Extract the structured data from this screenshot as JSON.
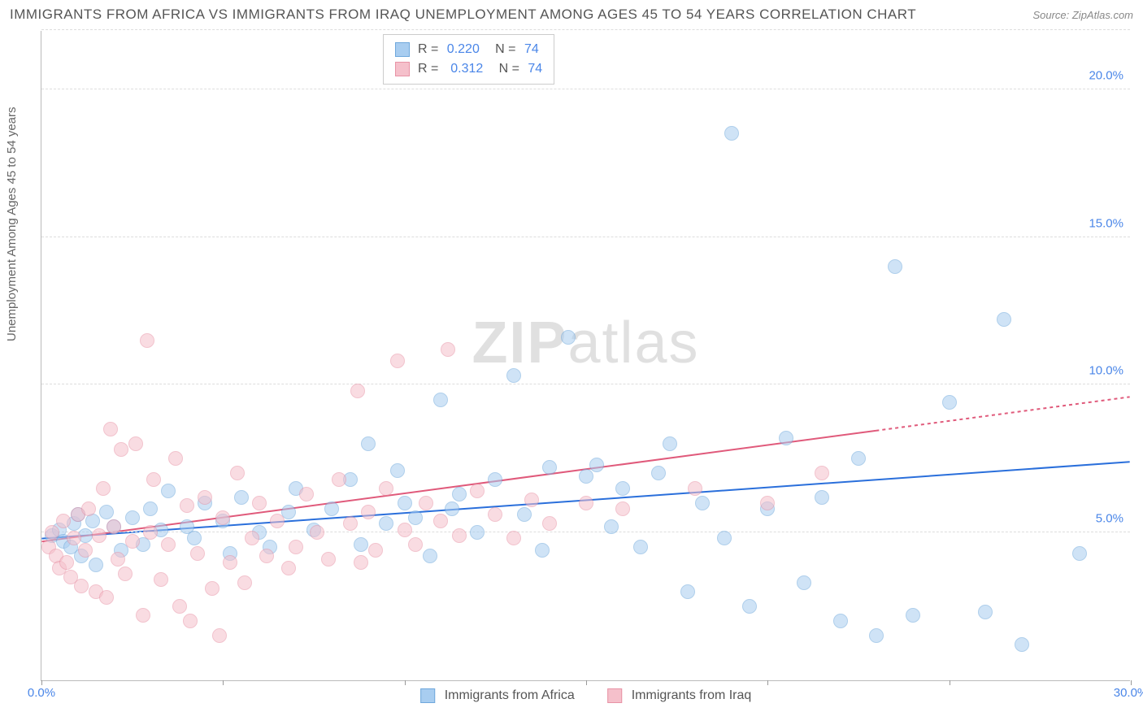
{
  "title": "IMMIGRANTS FROM AFRICA VS IMMIGRANTS FROM IRAQ UNEMPLOYMENT AMONG AGES 45 TO 54 YEARS CORRELATION CHART",
  "source": "Source: ZipAtlas.com",
  "y_axis_label": "Unemployment Among Ages 45 to 54 years",
  "watermark_a": "ZIP",
  "watermark_b": "atlas",
  "chart": {
    "type": "scatter",
    "xlim": [
      0,
      30
    ],
    "ylim": [
      0,
      22
    ],
    "x_ticks": [
      0,
      5,
      10,
      15,
      20,
      25,
      30
    ],
    "x_tick_labels": {
      "0": "0.0%",
      "30": "30.0%"
    },
    "y_ticks": [
      5,
      10,
      15,
      20
    ],
    "y_tick_labels": {
      "5": "5.0%",
      "10": "10.0%",
      "15": "15.0%",
      "20": "20.0%"
    },
    "background_color": "#ffffff",
    "grid_color": "#dddddd",
    "axis_color": "#bbbbbb",
    "tick_label_color": "#4a86e8",
    "point_radius": 9,
    "point_opacity": 0.55,
    "series": [
      {
        "name": "Immigrants from Africa",
        "fill": "#a8cdf0",
        "stroke": "#6fa8dc",
        "r": "0.220",
        "n": "74",
        "trend": {
          "x1": 0,
          "y1": 4.8,
          "x2": 30,
          "y2": 7.4,
          "color": "#2a6fdb",
          "width": 2
        },
        "points": [
          [
            0.3,
            4.9
          ],
          [
            0.5,
            5.1
          ],
          [
            0.6,
            4.7
          ],
          [
            0.8,
            4.5
          ],
          [
            0.9,
            5.3
          ],
          [
            1.0,
            5.6
          ],
          [
            1.1,
            4.2
          ],
          [
            1.2,
            4.9
          ],
          [
            1.4,
            5.4
          ],
          [
            1.5,
            3.9
          ],
          [
            1.8,
            5.7
          ],
          [
            2.0,
            5.2
          ],
          [
            2.2,
            4.4
          ],
          [
            2.5,
            5.5
          ],
          [
            2.8,
            4.6
          ],
          [
            3.0,
            5.8
          ],
          [
            3.3,
            5.1
          ],
          [
            3.5,
            6.4
          ],
          [
            4.0,
            5.2
          ],
          [
            4.2,
            4.8
          ],
          [
            4.5,
            6.0
          ],
          [
            5.0,
            5.4
          ],
          [
            5.2,
            4.3
          ],
          [
            5.5,
            6.2
          ],
          [
            6.0,
            5.0
          ],
          [
            6.3,
            4.5
          ],
          [
            6.8,
            5.7
          ],
          [
            7.0,
            6.5
          ],
          [
            7.5,
            5.1
          ],
          [
            8.0,
            5.8
          ],
          [
            8.5,
            6.8
          ],
          [
            8.8,
            4.6
          ],
          [
            9.0,
            8.0
          ],
          [
            9.5,
            5.3
          ],
          [
            9.8,
            7.1
          ],
          [
            10.0,
            6.0
          ],
          [
            10.3,
            5.5
          ],
          [
            10.7,
            4.2
          ],
          [
            11.0,
            9.5
          ],
          [
            11.3,
            5.8
          ],
          [
            11.5,
            6.3
          ],
          [
            12.0,
            5.0
          ],
          [
            12.5,
            6.8
          ],
          [
            13.0,
            10.3
          ],
          [
            13.3,
            5.6
          ],
          [
            14.0,
            7.2
          ],
          [
            14.5,
            11.6
          ],
          [
            15.0,
            6.9
          ],
          [
            15.3,
            7.3
          ],
          [
            15.7,
            5.2
          ],
          [
            16.0,
            6.5
          ],
          [
            16.5,
            4.5
          ],
          [
            17.0,
            7.0
          ],
          [
            17.3,
            8.0
          ],
          [
            17.8,
            3.0
          ],
          [
            18.2,
            6.0
          ],
          [
            19.0,
            18.5
          ],
          [
            19.5,
            2.5
          ],
          [
            20.0,
            5.8
          ],
          [
            20.5,
            8.2
          ],
          [
            21.0,
            3.3
          ],
          [
            21.5,
            6.2
          ],
          [
            22.0,
            2.0
          ],
          [
            23.0,
            1.5
          ],
          [
            23.5,
            14.0
          ],
          [
            24.0,
            2.2
          ],
          [
            25.0,
            9.4
          ],
          [
            26.0,
            2.3
          ],
          [
            26.5,
            12.2
          ],
          [
            27.0,
            1.2
          ],
          [
            28.6,
            4.3
          ],
          [
            22.5,
            7.5
          ],
          [
            18.8,
            4.8
          ],
          [
            13.8,
            4.4
          ]
        ]
      },
      {
        "name": "Immigrants from Iraq",
        "fill": "#f5c0cb",
        "stroke": "#e893a6",
        "r": "0.312",
        "n": "74",
        "trend": {
          "x1": 0,
          "y1": 4.7,
          "x2": 30,
          "y2": 9.6,
          "dash_from_x": 23,
          "color": "#e05a7b",
          "width": 2
        },
        "points": [
          [
            0.2,
            4.5
          ],
          [
            0.3,
            5.0
          ],
          [
            0.4,
            4.2
          ],
          [
            0.5,
            3.8
          ],
          [
            0.6,
            5.4
          ],
          [
            0.7,
            4.0
          ],
          [
            0.8,
            3.5
          ],
          [
            0.9,
            4.8
          ],
          [
            1.0,
            5.6
          ],
          [
            1.1,
            3.2
          ],
          [
            1.2,
            4.4
          ],
          [
            1.3,
            5.8
          ],
          [
            1.5,
            3.0
          ],
          [
            1.6,
            4.9
          ],
          [
            1.7,
            6.5
          ],
          [
            1.8,
            2.8
          ],
          [
            1.9,
            8.5
          ],
          [
            2.0,
            5.2
          ],
          [
            2.1,
            4.1
          ],
          [
            2.2,
            7.8
          ],
          [
            2.3,
            3.6
          ],
          [
            2.5,
            4.7
          ],
          [
            2.6,
            8.0
          ],
          [
            2.8,
            2.2
          ],
          [
            2.9,
            11.5
          ],
          [
            3.0,
            5.0
          ],
          [
            3.1,
            6.8
          ],
          [
            3.3,
            3.4
          ],
          [
            3.5,
            4.6
          ],
          [
            3.7,
            7.5
          ],
          [
            3.8,
            2.5
          ],
          [
            4.0,
            5.9
          ],
          [
            4.1,
            2.0
          ],
          [
            4.3,
            4.3
          ],
          [
            4.5,
            6.2
          ],
          [
            4.7,
            3.1
          ],
          [
            4.9,
            1.5
          ],
          [
            5.0,
            5.5
          ],
          [
            5.2,
            4.0
          ],
          [
            5.4,
            7.0
          ],
          [
            5.6,
            3.3
          ],
          [
            5.8,
            4.8
          ],
          [
            6.0,
            6.0
          ],
          [
            6.2,
            4.2
          ],
          [
            6.5,
            5.4
          ],
          [
            6.8,
            3.8
          ],
          [
            7.0,
            4.5
          ],
          [
            7.3,
            6.3
          ],
          [
            7.6,
            5.0
          ],
          [
            7.9,
            4.1
          ],
          [
            8.2,
            6.8
          ],
          [
            8.5,
            5.3
          ],
          [
            8.7,
            9.8
          ],
          [
            8.8,
            4.0
          ],
          [
            9.0,
            5.7
          ],
          [
            9.2,
            4.4
          ],
          [
            9.5,
            6.5
          ],
          [
            9.8,
            10.8
          ],
          [
            10.0,
            5.1
          ],
          [
            10.3,
            4.6
          ],
          [
            10.6,
            6.0
          ],
          [
            11.0,
            5.4
          ],
          [
            11.2,
            11.2
          ],
          [
            11.5,
            4.9
          ],
          [
            12.0,
            6.4
          ],
          [
            12.5,
            5.6
          ],
          [
            13.0,
            4.8
          ],
          [
            13.5,
            6.1
          ],
          [
            14.0,
            5.3
          ],
          [
            15.0,
            6.0
          ],
          [
            16.0,
            5.8
          ],
          [
            18.0,
            6.5
          ],
          [
            20.0,
            6.0
          ],
          [
            21.5,
            7.0
          ]
        ]
      }
    ],
    "legend_bottom": [
      {
        "label": "Immigrants from Africa",
        "fill": "#a8cdf0",
        "stroke": "#6fa8dc"
      },
      {
        "label": "Immigrants from Iraq",
        "fill": "#f5c0cb",
        "stroke": "#e893a6"
      }
    ]
  }
}
